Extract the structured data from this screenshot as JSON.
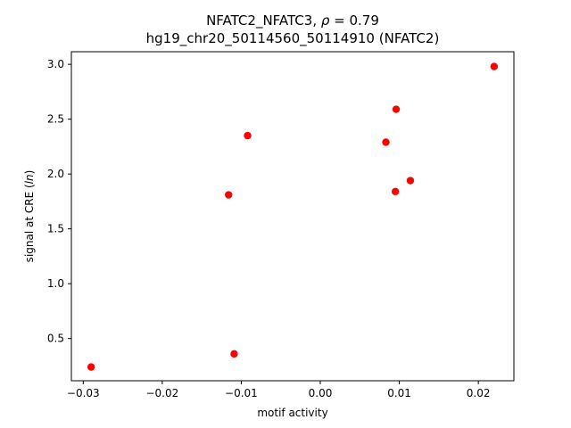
{
  "chart_data": {
    "type": "scatter",
    "title_line1_prefix": "NFATC2_NFATC3, ",
    "title_rho_symbol": "ρ",
    "title_rho_value": " = 0.79",
    "title_line2": "hg19_chr20_50114560_50114910 (NFATC2)",
    "xlabel": "motif activity",
    "ylabel_prefix": "signal at CRE (",
    "ylabel_italic": "ln",
    "ylabel_suffix": ")",
    "xlim": [
      -0.0315,
      0.0245
    ],
    "ylim": [
      0.115,
      3.115
    ],
    "xticks": [
      -0.03,
      -0.02,
      -0.01,
      0.0,
      0.01,
      0.02
    ],
    "xtick_labels": [
      "−0.03",
      "−0.02",
      "−0.01",
      "0.00",
      "0.01",
      "0.02"
    ],
    "yticks": [
      0.5,
      1.0,
      1.5,
      2.0,
      2.5,
      3.0
    ],
    "ytick_labels": [
      "0.5",
      "1.0",
      "1.5",
      "2.0",
      "2.5",
      "3.0"
    ],
    "grid": false,
    "marker_color": "#ff0000",
    "points": [
      {
        "x": -0.029,
        "y": 0.24
      },
      {
        "x": -0.0109,
        "y": 0.36
      },
      {
        "x": -0.0116,
        "y": 1.81
      },
      {
        "x": -0.0092,
        "y": 2.35
      },
      {
        "x": 0.0083,
        "y": 2.29
      },
      {
        "x": 0.0096,
        "y": 2.59
      },
      {
        "x": 0.0095,
        "y": 1.84
      },
      {
        "x": 0.0114,
        "y": 1.94
      },
      {
        "x": 0.022,
        "y": 2.98
      }
    ]
  }
}
